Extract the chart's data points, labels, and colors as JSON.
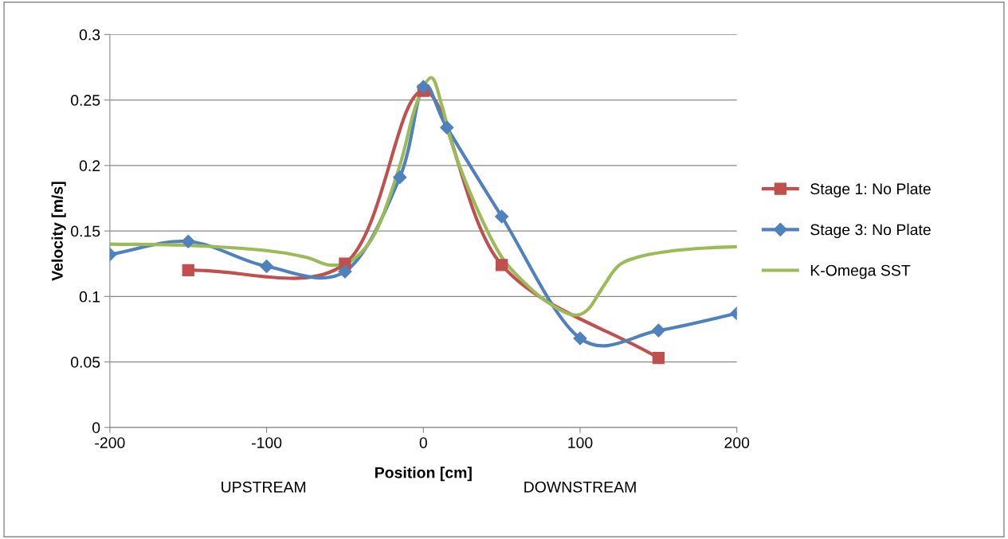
{
  "chart_data": {
    "type": "line",
    "xlabel": "Position [cm]",
    "ylabel": "Velocity [m/s]",
    "annotations": [
      "UPSTREAM",
      "DOWNSTREAM"
    ],
    "xlim": [
      -200,
      200
    ],
    "xticks": [
      -200,
      -100,
      0,
      100,
      200
    ],
    "ylim": [
      0,
      0.3
    ],
    "yticks": [
      0,
      0.05,
      0.1,
      0.15,
      0.2,
      0.25,
      0.3
    ],
    "grid": "y",
    "legend": "right",
    "series": [
      {
        "name": "Stage 1: No Plate",
        "color": "#c0504d",
        "marker": "square",
        "x": [
          -150,
          -50,
          0,
          50,
          150
        ],
        "values": [
          0.12,
          0.125,
          0.257,
          0.124,
          0.053
        ]
      },
      {
        "name": "Stage 3: No Plate",
        "color": "#4f81bd",
        "marker": "diamond",
        "x": [
          -200,
          -150,
          -100,
          -50,
          -15,
          0,
          15,
          50,
          100,
          150,
          200
        ],
        "values": [
          0.132,
          0.142,
          0.123,
          0.119,
          0.191,
          0.26,
          0.229,
          0.161,
          0.068,
          0.074,
          0.087
        ]
      },
      {
        "name": "K-Omega SST",
        "color": "#9bbb59",
        "marker": "none",
        "x": [
          -200,
          -150,
          -100,
          -75,
          -60,
          -45,
          -30,
          -15,
          -5,
          5,
          12,
          20,
          35,
          50,
          65,
          80,
          95,
          105,
          115,
          125,
          140,
          160,
          180,
          200
        ],
        "values": [
          0.14,
          0.139,
          0.135,
          0.13,
          0.124,
          0.128,
          0.15,
          0.2,
          0.245,
          0.267,
          0.245,
          0.21,
          0.165,
          0.13,
          0.11,
          0.095,
          0.086,
          0.09,
          0.108,
          0.124,
          0.131,
          0.135,
          0.137,
          0.138
        ]
      }
    ]
  }
}
